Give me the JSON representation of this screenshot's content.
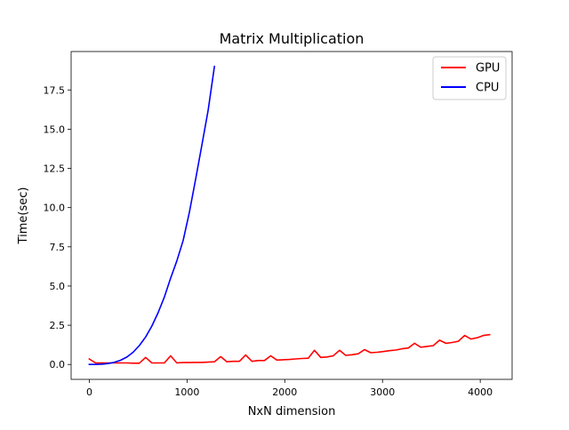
{
  "chart_data": {
    "type": "line",
    "title": "Matrix Multiplication",
    "xlabel": "NxN dimension",
    "ylabel": "Time(sec)",
    "xlim": [
      -186,
      4326
    ],
    "ylim": [
      -0.95,
      19.95
    ],
    "xticks": [
      0,
      1000,
      2000,
      3000,
      4000
    ],
    "xtick_labels": [
      "0",
      "1000",
      "2000",
      "3000",
      "4000"
    ],
    "yticks": [
      0,
      2.5,
      5,
      7.5,
      10,
      12.5,
      15,
      17.5
    ],
    "ytick_labels": [
      "0.0",
      "2.5",
      "5.0",
      "7.5",
      "10.0",
      "12.5",
      "15.0",
      "17.5"
    ],
    "grid": false,
    "legend_position": "top-right",
    "series": [
      {
        "name": "GPU",
        "color": "#ff0000",
        "x": [
          0,
          64,
          128,
          192,
          256,
          320,
          384,
          448,
          512,
          576,
          640,
          704,
          768,
          832,
          896,
          960,
          1024,
          1088,
          1152,
          1216,
          1280,
          1344,
          1408,
          1472,
          1536,
          1600,
          1664,
          1728,
          1792,
          1856,
          1920,
          1984,
          2048,
          2112,
          2176,
          2240,
          2304,
          2368,
          2432,
          2496,
          2560,
          2624,
          2688,
          2752,
          2816,
          2880,
          2944,
          3008,
          3072,
          3136,
          3200,
          3264,
          3328,
          3392,
          3456,
          3520,
          3584,
          3648,
          3712,
          3776,
          3840,
          3904,
          3968,
          4032,
          4096
        ],
        "y": [
          0.35,
          0.1,
          0.1,
          0.1,
          0.1,
          0.1,
          0.1,
          0.08,
          0.08,
          0.45,
          0.1,
          0.1,
          0.1,
          0.55,
          0.1,
          0.12,
          0.12,
          0.13,
          0.13,
          0.15,
          0.17,
          0.5,
          0.17,
          0.2,
          0.2,
          0.6,
          0.2,
          0.25,
          0.25,
          0.55,
          0.28,
          0.3,
          0.32,
          0.35,
          0.38,
          0.4,
          0.9,
          0.45,
          0.48,
          0.55,
          0.9,
          0.58,
          0.62,
          0.68,
          0.95,
          0.75,
          0.78,
          0.82,
          0.88,
          0.92,
          1.0,
          1.05,
          1.35,
          1.1,
          1.15,
          1.2,
          1.55,
          1.35,
          1.4,
          1.48,
          1.85,
          1.62,
          1.7,
          1.85,
          1.9
        ]
      },
      {
        "name": "CPU",
        "color": "#0000ff",
        "x": [
          0,
          64,
          128,
          192,
          256,
          320,
          384,
          448,
          512,
          576,
          640,
          704,
          768,
          832,
          896,
          960,
          1024,
          1088,
          1152,
          1216,
          1280
        ],
        "y": [
          0.0,
          0.0,
          0.02,
          0.06,
          0.14,
          0.27,
          0.47,
          0.78,
          1.2,
          1.75,
          2.45,
          3.3,
          4.3,
          5.5,
          6.6,
          7.9,
          9.7,
          11.8,
          14.0,
          16.2,
          19.0
        ]
      }
    ]
  }
}
